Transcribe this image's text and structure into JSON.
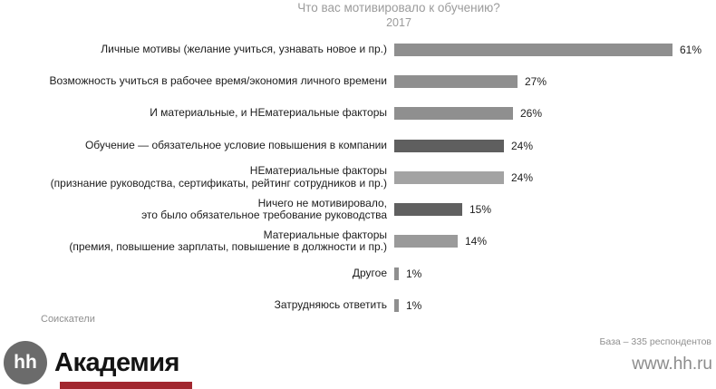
{
  "chart_data": {
    "type": "bar",
    "orientation": "horizontal",
    "title": "Что вас мотивировало к обучению?",
    "subtitle": "2017",
    "unit": "%",
    "xlim": [
      0,
      65
    ],
    "axes_hidden": true,
    "grid": false,
    "legend": false,
    "rows": [
      {
        "label_lines": [
          "Личные мотивы (желание учиться, узнавать новое и пр.)"
        ],
        "value": 61,
        "pct_label": "61%",
        "color": "#8f8f8f"
      },
      {
        "label_lines": [
          "Возможность учиться в рабочее время/экономия личного времени"
        ],
        "value": 27,
        "pct_label": "27%",
        "color": "#8f8f8f"
      },
      {
        "label_lines": [
          "И материальные, и НЕматериальные факторы"
        ],
        "value": 26,
        "pct_label": "26%",
        "color": "#8f8f8f"
      },
      {
        "label_lines": [
          "Обучение — обязательное условие повышения в компании"
        ],
        "value": 24,
        "pct_label": "24%",
        "color": "#5f5f5f"
      },
      {
        "label_lines": [
          "НЕматериальные факторы",
          "(признание руководства, сертификаты, рейтинг сотрудников и пр.)"
        ],
        "value": 24,
        "pct_label": "24%",
        "color": "#a3a3a3"
      },
      {
        "label_lines": [
          "Ничего не мотивировало,",
          "это было обязательное требование руководства"
        ],
        "value": 15,
        "pct_label": "15%",
        "color": "#606060"
      },
      {
        "label_lines": [
          "Материальные факторы",
          "(премия, повышение зарплаты, повышение в должности и пр.)"
        ],
        "value": 14,
        "pct_label": "14%",
        "color": "#9a9a9a"
      },
      {
        "label_lines": [
          "Другое"
        ],
        "value": 1,
        "pct_label": "1%",
        "color": "#8f8f8f"
      },
      {
        "label_lines": [
          "Затрудняюсь ответить"
        ],
        "value": 1,
        "pct_label": "1%",
        "color": "#8f8f8f"
      }
    ]
  },
  "annotations": {
    "audience": "Соискатели",
    "base": "База – 335 респондентов"
  },
  "footer": {
    "logo_circle_text": "hh",
    "logo_text": "Академия",
    "website": "www.hh.ru",
    "logo_circle_color": "#6b6b6b",
    "brand_red": "#a2272f"
  }
}
